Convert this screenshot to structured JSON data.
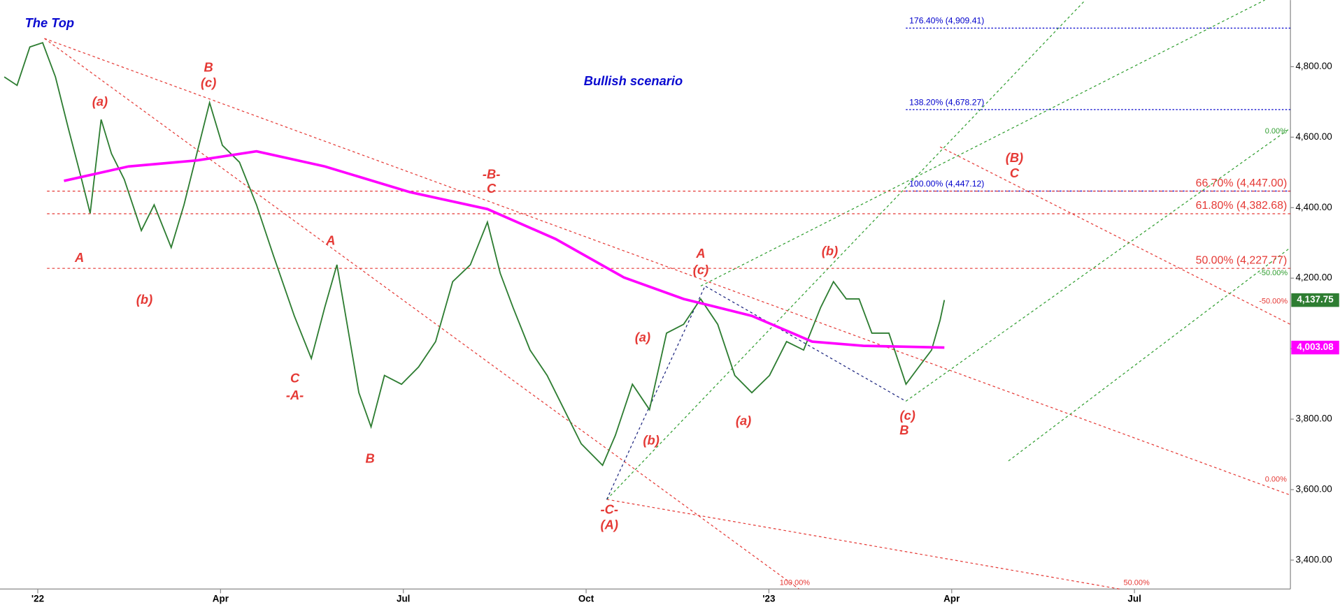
{
  "chart_data": {
    "type": "line",
    "x": [
      -0.55,
      -0.34,
      -0.13,
      0.08,
      0.29,
      0.5,
      0.72,
      0.86,
      1.04,
      1.21,
      1.42,
      1.7,
      1.91,
      2.19,
      2.4,
      2.61,
      2.82,
      3.03,
      3.31,
      3.59,
      3.87,
      4.21,
      4.49,
      4.71,
      4.91,
      5.27,
      5.47,
      5.69,
      5.97,
      6.25,
      6.53,
      6.81,
      7.1,
      7.38,
      7.59,
      7.8,
      8.08,
      8.36,
      8.64,
      8.92,
      9.27,
      9.48,
      9.76,
      10.04,
      10.32,
      10.6,
      10.88,
      11.16,
      11.44,
      11.72,
      12.01,
      12.29,
      12.57,
      12.85,
      13.06,
      13.27,
      13.48,
      13.69,
      13.97,
      14.25,
      14.46,
      14.67,
      14.81,
      14.88
    ],
    "series": [
      {
        "color": "#2e7d32",
        "last_label": "4,137.75",
        "values": [
          4771,
          4747,
          4856,
          4868,
          4771,
          4626,
          4480,
          4384,
          4650,
          4553,
          4480,
          4335,
          4408,
          4287,
          4408,
          4553,
          4698,
          4577,
          4529,
          4408,
          4263,
          4093,
          3972,
          4117,
          4238,
          3875,
          3778,
          3924,
          3899,
          3948,
          4020,
          4190,
          4238,
          4359,
          4214,
          4117,
          3996,
          3924,
          3827,
          3730,
          3669,
          3754,
          3899,
          3827,
          4044,
          4069,
          4141,
          4069,
          3924,
          3875,
          3924,
          4020,
          3996,
          4117,
          4190,
          4141,
          4141,
          4044,
          4044,
          3899,
          3948,
          3996,
          4081,
          4137.75
        ]
      },
      {
        "color": "#ff00ff",
        "last_label": "4,003.08",
        "x": [
          0.43,
          1.49,
          2.61,
          3.59,
          4.71,
          6.11,
          7.38,
          8.5,
          9.62,
          10.6,
          11.72,
          12.71,
          13.55,
          14.88
        ],
        "values": [
          4476,
          4517,
          4534,
          4560,
          4517,
          4444,
          4396,
          4311,
          4202,
          4141,
          4093,
          4020,
          4008,
          4003.08
        ]
      }
    ],
    "xlim": [
      -0.62,
      20.56
    ],
    "xticks": [
      {
        "value": 0,
        "label": "'22"
      },
      {
        "value": 3,
        "label": "Apr"
      },
      {
        "value": 6,
        "label": "Jul"
      },
      {
        "value": 9,
        "label": "Oct"
      },
      {
        "value": 12,
        "label": "'23"
      },
      {
        "value": 15,
        "label": "Apr"
      },
      {
        "value": 18,
        "label": "Jul"
      }
    ],
    "ylim": [
      3318,
      4989
    ],
    "yticks": [
      {
        "value": 3400,
        "label": "3,400.00"
      },
      {
        "value": 3600,
        "label": "3,600.00"
      },
      {
        "value": 3800,
        "label": "3,800.00"
      },
      {
        "value": 4000,
        "label": "4,000.00"
      },
      {
        "value": 4200,
        "label": "4,200.00"
      },
      {
        "value": 4400,
        "label": "4,400.00"
      },
      {
        "value": 4600,
        "label": "4,600.00"
      },
      {
        "value": 4800,
        "label": "4,800.00"
      }
    ],
    "levels": [
      {
        "value": 4909.41,
        "label": "176.40% (4,909.41)",
        "color": "#0000cc"
      },
      {
        "value": 4678.27,
        "label": "138.20% (4,678.27)",
        "color": "#0000cc"
      },
      {
        "value": 4447.12,
        "label": "100.00% (4,447.12)",
        "color": "#0000cc"
      },
      {
        "value": 4447.0,
        "label": "66.70% (4,447.00)",
        "color": "#e53935"
      },
      {
        "value": 4382.68,
        "label": "61.80% (4,382.68)",
        "color": "#e53935"
      },
      {
        "value": 4227.77,
        "label": "50.00% (4,227.77)",
        "color": "#e53935"
      }
    ],
    "annotations": [
      "The Top",
      "Bullish scenario",
      "(a)",
      "B",
      "(c)",
      "A",
      "(b)",
      "C",
      "-A-",
      "A",
      "B",
      "-B-",
      "C",
      "-C-",
      "(A)",
      "(a)",
      "(b)",
      "A",
      "(c)",
      "(a)",
      "(b)",
      "(c)",
      "B",
      "(B)",
      "C",
      "0.00%",
      "-50.00%",
      "-50.00%",
      "0.00%",
      "100.00%",
      "50.00%"
    ]
  }
}
